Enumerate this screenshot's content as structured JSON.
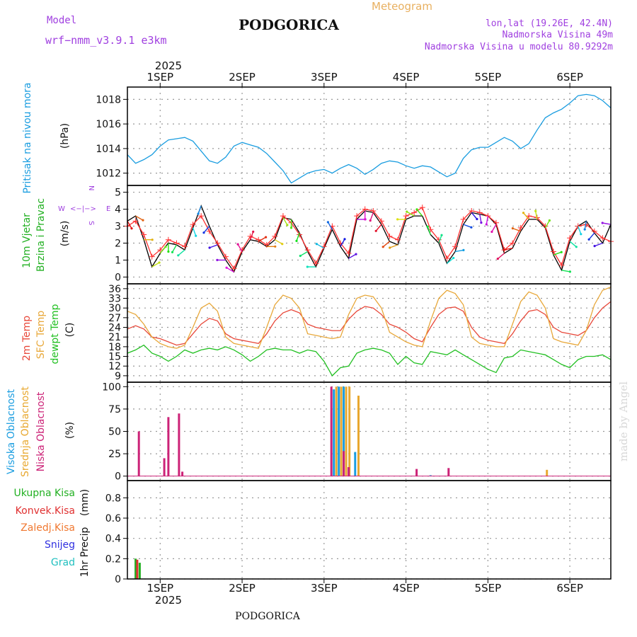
{
  "header": {
    "title": "PODGORICA",
    "model_label": "Model",
    "model_name": "wrf−nmm_v3.9.1  e3km",
    "meteogram": "Meteogram",
    "lonlat": "lon,lat (19.26E, 42.4N)",
    "elev": "Nadmorska Visina 49m",
    "elev_model": "Nadmorska Visina u modelu 80.9292m",
    "footer_title": "PODGORICA",
    "watermark": "made by Angel",
    "compass_n": "N",
    "compass_s": "S",
    "compass_w": "W",
    "compass_e": "E",
    "compass_glyph": "<−|−>"
  },
  "colors": {
    "pressure": "#1a9de0",
    "wind_speed": "#000000",
    "wind_gust": "#ff3030",
    "temp2m": "#e8483a",
    "sfc_temp": "#e8a83a",
    "dewpt": "#22c022",
    "cloud_high": "#1a9de0",
    "cloud_mid": "#e8a830",
    "cloud_low": "#cc2277",
    "precip_total": "#22b022",
    "precip_conv": "#e03030",
    "precip_frozen": "#f07830",
    "snow": "#3030e0",
    "hail": "#22c0c0",
    "compass": "#a040e0",
    "model_text": "#a040e0",
    "meteogram_text": "#e8b060"
  },
  "time_axis": {
    "year": "2025",
    "x_range": [
      0.6,
      6.5
    ],
    "days": [
      {
        "pos": 1,
        "label": "1SEP"
      },
      {
        "pos": 2,
        "label": "2SEP"
      },
      {
        "pos": 3,
        "label": "3SEP"
      },
      {
        "pos": 4,
        "label": "4SEP"
      },
      {
        "pos": 5,
        "label": "5SEP"
      },
      {
        "pos": 6,
        "label": "6SEP"
      }
    ]
  },
  "chart_data": [
    {
      "type": "line",
      "id": "pressure",
      "title": "Pritisak na nivou mora",
      "ylabel": "(hPa)",
      "ylim": [
        1011,
        1019
      ],
      "yticks": [
        1012,
        1014,
        1016,
        1018
      ],
      "series": [
        {
          "name": "Pritisak na nivou mora",
          "color_key": "pressure",
          "x": [
            0.6,
            0.7,
            0.8,
            0.9,
            1.0,
            1.1,
            1.2,
            1.3,
            1.4,
            1.5,
            1.6,
            1.7,
            1.8,
            1.9,
            2.0,
            2.1,
            2.2,
            2.3,
            2.4,
            2.5,
            2.6,
            2.7,
            2.8,
            2.9,
            3.0,
            3.1,
            3.2,
            3.3,
            3.4,
            3.5,
            3.6,
            3.7,
            3.8,
            3.9,
            4.0,
            4.1,
            4.2,
            4.3,
            4.4,
            4.5,
            4.6,
            4.7,
            4.8,
            4.9,
            5.0,
            5.1,
            5.2,
            5.3,
            5.4,
            5.5,
            5.6,
            5.7,
            5.8,
            5.9,
            6.0,
            6.1,
            6.2,
            6.3,
            6.4,
            6.5
          ],
          "values": [
            1013.5,
            1012.8,
            1013.1,
            1013.5,
            1014.2,
            1014.7,
            1014.8,
            1014.9,
            1014.6,
            1013.8,
            1013.0,
            1012.8,
            1013.3,
            1014.2,
            1014.5,
            1014.3,
            1014.1,
            1013.6,
            1012.9,
            1012.2,
            1011.2,
            1011.6,
            1012.0,
            1012.2,
            1012.3,
            1012.0,
            1012.4,
            1012.7,
            1012.4,
            1011.9,
            1012.3,
            1012.8,
            1013.0,
            1012.9,
            1012.6,
            1012.4,
            1012.6,
            1012.5,
            1012.1,
            1011.7,
            1012.0,
            1013.2,
            1013.9,
            1014.1,
            1014.1,
            1014.5,
            1014.9,
            1014.6,
            1014.0,
            1014.4,
            1015.5,
            1016.5,
            1016.9,
            1017.2,
            1017.7,
            1018.3,
            1018.4,
            1018.3,
            1017.9,
            1017.3
          ]
        }
      ]
    },
    {
      "type": "line",
      "id": "wind",
      "title": "10m Vjetar",
      "subtitle": "Brzina i Pravac",
      "ylabel": "(m/s)",
      "ylim": [
        -0.4,
        5.4
      ],
      "yticks": [
        0,
        1,
        2,
        3,
        4,
        5
      ],
      "series": [
        {
          "name": "Brzina",
          "color_key": "wind_speed",
          "x": [
            0.6,
            0.7,
            0.8,
            0.9,
            1.0,
            1.1,
            1.2,
            1.3,
            1.4,
            1.5,
            1.6,
            1.7,
            1.8,
            1.9,
            2.0,
            2.1,
            2.2,
            2.3,
            2.4,
            2.5,
            2.6,
            2.7,
            2.8,
            2.9,
            3.0,
            3.1,
            3.2,
            3.3,
            3.4,
            3.5,
            3.6,
            3.7,
            3.8,
            3.9,
            4.0,
            4.1,
            4.2,
            4.3,
            4.4,
            4.5,
            4.6,
            4.7,
            4.8,
            4.9,
            5.0,
            5.1,
            5.2,
            5.3,
            5.4,
            5.5,
            5.6,
            5.7,
            5.8,
            5.9,
            6.0,
            6.1,
            6.2,
            6.3,
            6.4,
            6.5
          ],
          "values": [
            3.3,
            3.6,
            2.2,
            0.6,
            1.4,
            2.0,
            1.9,
            1.6,
            2.9,
            4.2,
            3.0,
            1.9,
            1.0,
            0.3,
            1.5,
            2.2,
            2.1,
            1.8,
            2.2,
            3.5,
            3.4,
            2.6,
            1.5,
            0.6,
            1.7,
            2.8,
            1.8,
            1.1,
            3.4,
            3.9,
            3.8,
            3.1,
            2.1,
            1.9,
            3.4,
            3.6,
            3.6,
            2.5,
            2.0,
            0.8,
            1.5,
            3.1,
            3.8,
            3.7,
            3.6,
            3.1,
            1.4,
            1.7,
            2.7,
            3.4,
            3.4,
            2.9,
            1.3,
            0.4,
            2.1,
            3.0,
            3.3,
            2.6,
            2.0,
            3.1
          ]
        },
        {
          "name": "Udari",
          "color_key": "wind_gust",
          "x": [
            0.6,
            0.7,
            0.8,
            0.9,
            1.0,
            1.1,
            1.2,
            1.3,
            1.4,
            1.5,
            1.6,
            1.7,
            1.8,
            1.9,
            2.0,
            2.1,
            2.2,
            2.3,
            2.4,
            2.5,
            2.6,
            2.7,
            2.8,
            2.9,
            3.0,
            3.1,
            3.2,
            3.3,
            3.4,
            3.5,
            3.6,
            3.7,
            3.8,
            3.9,
            4.0,
            4.1,
            4.2,
            4.3,
            4.4,
            4.5,
            4.6,
            4.7,
            4.8,
            4.9,
            5.0,
            5.1,
            5.2,
            5.3,
            5.4,
            5.5,
            5.6,
            5.7,
            5.8,
            5.9,
            6.0,
            6.1,
            6.2,
            6.3,
            6.4,
            6.5
          ],
          "values": [
            3.0,
            3.3,
            2.5,
            1.2,
            1.6,
            2.2,
            2.0,
            1.8,
            3.1,
            3.6,
            2.7,
            2.0,
            1.2,
            0.5,
            1.6,
            2.4,
            2.2,
            1.9,
            2.4,
            3.6,
            3.2,
            2.5,
            1.6,
            0.8,
            1.8,
            3.0,
            2.0,
            1.4,
            3.6,
            4.0,
            3.9,
            3.3,
            2.4,
            2.2,
            3.6,
            3.8,
            4.1,
            2.8,
            2.2,
            1.1,
            1.8,
            3.4,
            3.9,
            3.8,
            3.6,
            3.2,
            1.6,
            2.0,
            2.9,
            3.6,
            3.5,
            3.0,
            1.5,
            0.7,
            2.3,
            3.0,
            3.1,
            2.7,
            2.3,
            2.1
          ]
        }
      ],
      "direction_deg": [
        150,
        120,
        90,
        60,
        40,
        180,
        210,
        230,
        160,
        200,
        220,
        250,
        270,
        300,
        330,
        20,
        60,
        90,
        120,
        150,
        180,
        200,
        240,
        270,
        300,
        330,
        30,
        60,
        90,
        180,
        200,
        220,
        230,
        250,
        270,
        300,
        320,
        340,
        20,
        50,
        80,
        110,
        140,
        170,
        190,
        210,
        230,
        260,
        290,
        320,
        350,
        30,
        70,
        100,
        130,
        160,
        190,
        220,
        250,
        280
      ]
    },
    {
      "type": "line",
      "id": "temperature",
      "title": "2m Temp",
      "subtitle": "SFC Temp",
      "extra_label": "dewpt Temp",
      "ylabel": "(C)",
      "ylim": [
        7,
        37.5
      ],
      "yticks": [
        9,
        12,
        15,
        18,
        21,
        24,
        27,
        30,
        33,
        36
      ],
      "series": [
        {
          "name": "2m Temp",
          "color_key": "temp2m",
          "x": [
            0.6,
            0.7,
            0.8,
            0.9,
            1.0,
            1.1,
            1.2,
            1.3,
            1.4,
            1.5,
            1.6,
            1.7,
            1.8,
            1.9,
            2.0,
            2.1,
            2.2,
            2.3,
            2.4,
            2.5,
            2.6,
            2.7,
            2.8,
            2.9,
            3.0,
            3.1,
            3.2,
            3.3,
            3.4,
            3.5,
            3.6,
            3.7,
            3.8,
            3.9,
            4.0,
            4.1,
            4.2,
            4.3,
            4.4,
            4.5,
            4.6,
            4.7,
            4.8,
            4.9,
            5.0,
            5.1,
            5.2,
            5.3,
            5.4,
            5.5,
            5.6,
            5.7,
            5.8,
            5.9,
            6.0,
            6.1,
            6.2,
            6.3,
            6.4,
            6.5
          ],
          "values": [
            23.5,
            24.5,
            23.5,
            21.0,
            20.5,
            19.5,
            18.5,
            19.0,
            22.0,
            25.0,
            26.8,
            26.0,
            22.0,
            20.5,
            20.0,
            19.5,
            19.0,
            22.0,
            26.0,
            28.5,
            29.5,
            28.5,
            25.0,
            24.0,
            23.5,
            23.0,
            23.0,
            26.5,
            29.0,
            30.5,
            30.0,
            28.0,
            25.0,
            24.0,
            22.5,
            20.5,
            19.5,
            24.0,
            28.0,
            30.0,
            30.3,
            29.0,
            24.0,
            21.0,
            20.0,
            19.5,
            19.0,
            22.0,
            26.0,
            29.0,
            29.5,
            28.0,
            24.0,
            22.5,
            22.0,
            21.5,
            23.0,
            27.0,
            30.0,
            32.0
          ]
        },
        {
          "name": "SFC Temp",
          "color_key": "sfc_temp",
          "x": [
            0.6,
            0.7,
            0.8,
            0.9,
            1.0,
            1.1,
            1.2,
            1.3,
            1.4,
            1.5,
            1.6,
            1.7,
            1.8,
            1.9,
            2.0,
            2.1,
            2.2,
            2.3,
            2.4,
            2.5,
            2.6,
            2.7,
            2.8,
            2.9,
            3.0,
            3.1,
            3.2,
            3.3,
            3.4,
            3.5,
            3.6,
            3.7,
            3.8,
            3.9,
            4.0,
            4.1,
            4.2,
            4.3,
            4.4,
            4.5,
            4.6,
            4.7,
            4.8,
            4.9,
            5.0,
            5.1,
            5.2,
            5.3,
            5.4,
            5.5,
            5.6,
            5.7,
            5.8,
            5.9,
            6.0,
            6.1,
            6.2,
            6.3,
            6.4,
            6.5
          ],
          "values": [
            29.0,
            28.0,
            25.0,
            21.0,
            19.0,
            18.0,
            17.5,
            18.5,
            24.0,
            30.0,
            31.5,
            29.0,
            21.0,
            19.0,
            18.5,
            18.0,
            17.5,
            24.0,
            31.0,
            34.0,
            33.0,
            30.0,
            22.0,
            21.5,
            21.0,
            20.5,
            21.0,
            28.0,
            33.0,
            34.0,
            33.5,
            30.0,
            22.5,
            21.0,
            19.5,
            18.5,
            18.0,
            26.0,
            33.0,
            35.5,
            34.5,
            31.0,
            21.0,
            19.0,
            18.5,
            18.0,
            18.0,
            25.0,
            32.0,
            35.0,
            34.0,
            30.0,
            20.5,
            19.5,
            19.0,
            18.5,
            23.0,
            31.0,
            35.5,
            36.5
          ]
        },
        {
          "name": "dewpt Temp",
          "color_key": "dewpt",
          "x": [
            0.6,
            0.7,
            0.8,
            0.9,
            1.0,
            1.1,
            1.2,
            1.3,
            1.4,
            1.5,
            1.6,
            1.7,
            1.8,
            1.9,
            2.0,
            2.1,
            2.2,
            2.3,
            2.4,
            2.5,
            2.6,
            2.7,
            2.8,
            2.9,
            3.0,
            3.1,
            3.2,
            3.3,
            3.4,
            3.5,
            3.6,
            3.7,
            3.8,
            3.9,
            4.0,
            4.1,
            4.2,
            4.3,
            4.4,
            4.5,
            4.6,
            4.7,
            4.8,
            4.9,
            5.0,
            5.1,
            5.2,
            5.3,
            5.4,
            5.5,
            5.6,
            5.7,
            5.8,
            5.9,
            6.0,
            6.1,
            6.2,
            6.3,
            6.4,
            6.5
          ],
          "values": [
            16.0,
            17.0,
            18.5,
            16.0,
            15.0,
            13.5,
            15.0,
            17.0,
            16.0,
            17.0,
            17.5,
            17.0,
            18.0,
            17.0,
            15.5,
            13.5,
            15.0,
            17.0,
            17.5,
            17.0,
            17.0,
            16.0,
            17.0,
            16.5,
            13.5,
            9.0,
            11.5,
            12.0,
            16.0,
            17.0,
            17.5,
            17.0,
            16.0,
            12.5,
            15.0,
            13.0,
            12.5,
            16.5,
            16.0,
            15.5,
            17.0,
            15.5,
            14.0,
            12.5,
            11.0,
            10.0,
            14.5,
            15.0,
            17.0,
            16.5,
            16.0,
            15.5,
            14.0,
            12.5,
            11.5,
            14.0,
            15.0,
            15.0,
            15.5,
            14.0
          ]
        }
      ]
    },
    {
      "type": "bar",
      "id": "clouds",
      "title": "Visoka Oblacnost",
      "subtitle": "Srednja Oblacnost",
      "extra_label": "Niska Oblacnost",
      "ylabel": "(%)",
      "ylim": [
        -5,
        105
      ],
      "yticks": [
        0,
        25,
        50,
        75,
        100
      ],
      "series": [
        {
          "name": "Visoka Oblacnost",
          "color_key": "cloud_high",
          "x": [
            3.12,
            3.18,
            3.24,
            3.38,
            4.3
          ],
          "values": [
            97,
            100,
            100,
            27,
            1
          ]
        },
        {
          "name": "Srednja Oblacnost",
          "color_key": "cloud_mid",
          "x": [
            3.15,
            3.21,
            3.27,
            3.31,
            3.42,
            5.72
          ],
          "values": [
            100,
            100,
            100,
            100,
            90,
            7
          ]
        },
        {
          "name": "Niska Oblacnost",
          "color_key": "cloud_low",
          "x": [
            0.74,
            1.05,
            1.1,
            1.23,
            1.27,
            3.09,
            3.24,
            3.3,
            4.13,
            4.52
          ],
          "values": [
            50,
            20,
            66,
            70,
            5,
            100,
            28,
            10,
            8,
            9
          ]
        }
      ]
    },
    {
      "type": "bar",
      "id": "precip",
      "title": "1hr Precip",
      "ylabel": "(mm)",
      "ylim": [
        0,
        0.97
      ],
      "yticks": [
        0,
        0.2,
        0.4,
        0.6,
        0.8
      ],
      "ytick_labels": [
        "0",
        "0.2",
        "0.4",
        "0.6",
        "0.8"
      ],
      "legend": [
        "Ukupna Kisa",
        "Konvek.Kisa",
        "Zaledj.Kisa",
        "Snijeg",
        "Grad"
      ],
      "series": [
        {
          "name": "Ukupna Kisa",
          "color_key": "precip_total",
          "x": [
            0.7,
            0.75
          ],
          "values": [
            0.2,
            0.16
          ]
        },
        {
          "name": "Konvek.Kisa",
          "color_key": "precip_conv",
          "x": [
            0.72
          ],
          "values": [
            0.19
          ]
        },
        {
          "name": "Zaledj.Kisa",
          "color_key": "precip_frozen",
          "x": [],
          "values": []
        },
        {
          "name": "Snijeg",
          "color_key": "snow",
          "x": [],
          "values": []
        },
        {
          "name": "Grad",
          "color_key": "hail",
          "x": [],
          "values": []
        }
      ]
    }
  ]
}
